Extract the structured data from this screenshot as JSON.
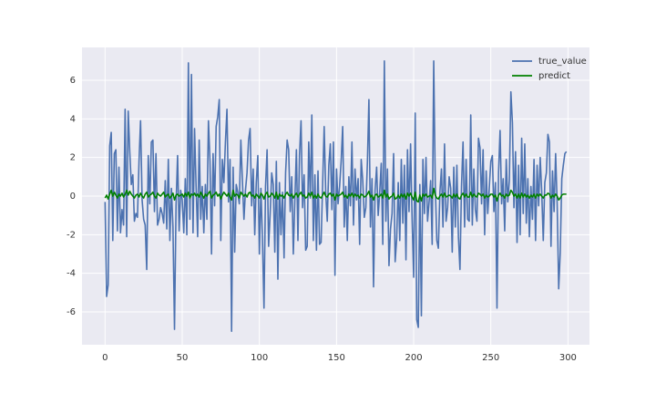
{
  "chart_data": {
    "type": "line",
    "x": [
      0,
      1,
      2,
      3,
      4,
      5,
      6,
      7,
      8,
      9,
      10,
      11,
      12,
      13,
      14,
      15,
      16,
      17,
      18,
      19,
      20,
      21,
      22,
      23,
      24,
      25,
      26,
      27,
      28,
      29,
      30,
      31,
      32,
      33,
      34,
      35,
      36,
      37,
      38,
      39,
      40,
      41,
      42,
      43,
      44,
      45,
      46,
      47,
      48,
      49,
      50,
      51,
      52,
      53,
      54,
      55,
      56,
      57,
      58,
      59,
      60,
      61,
      62,
      63,
      64,
      65,
      66,
      67,
      68,
      69,
      70,
      71,
      72,
      73,
      74,
      75,
      76,
      77,
      78,
      79,
      80,
      81,
      82,
      83,
      84,
      85,
      86,
      87,
      88,
      89,
      90,
      91,
      92,
      93,
      94,
      95,
      96,
      97,
      98,
      99,
      100,
      101,
      102,
      103,
      104,
      105,
      106,
      107,
      108,
      109,
      110,
      111,
      112,
      113,
      114,
      115,
      116,
      117,
      118,
      119,
      120,
      121,
      122,
      123,
      124,
      125,
      126,
      127,
      128,
      129,
      130,
      131,
      132,
      133,
      134,
      135,
      136,
      137,
      138,
      139,
      140,
      141,
      142,
      143,
      144,
      145,
      146,
      147,
      148,
      149,
      150,
      151,
      152,
      153,
      154,
      155,
      156,
      157,
      158,
      159,
      160,
      161,
      162,
      163,
      164,
      165,
      166,
      167,
      168,
      169,
      170,
      171,
      172,
      173,
      174,
      175,
      176,
      177,
      178,
      179,
      180,
      181,
      182,
      183,
      184,
      185,
      186,
      187,
      188,
      189,
      190,
      191,
      192,
      193,
      194,
      195,
      196,
      197,
      198,
      199,
      200,
      201,
      202,
      203,
      204,
      205,
      206,
      207,
      208,
      209,
      210,
      211,
      212,
      213,
      214,
      215,
      216,
      217,
      218,
      219,
      220,
      221,
      222,
      223,
      224,
      225,
      226,
      227,
      228,
      229,
      230,
      231,
      232,
      233,
      234,
      235,
      236,
      237,
      238,
      239,
      240,
      241,
      242,
      243,
      244,
      245,
      246,
      247,
      248,
      249,
      250,
      251,
      252,
      253,
      254,
      255,
      256,
      257,
      258,
      259,
      260,
      261,
      262,
      263,
      264,
      265,
      266,
      267,
      268,
      269,
      270,
      271,
      272,
      273,
      274,
      275,
      276,
      277,
      278,
      279,
      280,
      281,
      282,
      283,
      284,
      285,
      286,
      287,
      288,
      289,
      290,
      291,
      292,
      293,
      294,
      295,
      296,
      297,
      298,
      299
    ],
    "series": [
      {
        "name": "true_value",
        "color": "#4c72b0",
        "values": [
          -0.3,
          -5.2,
          -4.6,
          2.6,
          3.3,
          -2.3,
          2.2,
          2.4,
          -1.8,
          1.5,
          -1.9,
          -0.7,
          -1.5,
          4.5,
          -2.1,
          4.4,
          2.3,
          0.6,
          1.1,
          -1.3,
          -0.9,
          -1.1,
          1.8,
          3.9,
          -0.2,
          -1.2,
          -1.5,
          -3.8,
          2.1,
          -0.4,
          2.8,
          2.9,
          -0.8,
          2.2,
          -1.5,
          -1.2,
          -0.6,
          -0.9,
          -1.4,
          0.8,
          -1.7,
          1.9,
          -2.3,
          0.4,
          -1.6,
          -6.9,
          -0.5,
          2.1,
          -1.8,
          0.3,
          -0.2,
          -1.9,
          0.9,
          -2.0,
          6.9,
          -1.2,
          6.3,
          -1.9,
          3.5,
          0.5,
          -2.1,
          2.9,
          -1.2,
          0.5,
          -1.9,
          0.6,
          -1.2,
          3.9,
          1.8,
          -3.0,
          2.2,
          -0.5,
          3.6,
          4.1,
          5.0,
          -2.3,
          1.9,
          0.7,
          2.8,
          4.5,
          -0.3,
          1.9,
          -7.0,
          1.5,
          -2.9,
          0.6,
          0.2,
          -0.4,
          2.9,
          0.8,
          -1.2,
          0.3,
          1.2,
          2.9,
          3.5,
          -0.5,
          1.4,
          -2.0,
          0.7,
          2.1,
          -3.0,
          0.4,
          -2.2,
          -5.8,
          0.5,
          2.4,
          -2.6,
          -0.9,
          1.2,
          0.6,
          -2.9,
          1.8,
          -4.3,
          0.7,
          -2.0,
          0.2,
          -3.2,
          1.2,
          2.9,
          2.4,
          -0.8,
          1.0,
          -3.0,
          -0.2,
          2.4,
          -2.3,
          2.1,
          3.9,
          -0.6,
          1.1,
          -2.8,
          -2.6,
          2.8,
          -0.1,
          4.2,
          -2.3,
          1.1,
          -2.8,
          1.3,
          -2.5,
          -2.4,
          0.6,
          3.6,
          0.2,
          -1.3,
          1.6,
          2.7,
          -0.7,
          2.8,
          -4.1,
          1.4,
          -0.4,
          0.5,
          1.8,
          3.6,
          -1.6,
          0.5,
          -2.3,
          1.0,
          -0.5,
          2.8,
          -1.5,
          1.4,
          -0.2,
          0.9,
          -2.5,
          1.9,
          0.8,
          -1.1,
          -0.6,
          1.7,
          5.0,
          -1.6,
          0.9,
          -4.7,
          0.3,
          1.5,
          -1.0,
          0.2,
          1.7,
          -2.5,
          7.0,
          -1.3,
          1.4,
          -3.6,
          -1.7,
          -0.9,
          2.2,
          -3.4,
          -2.2,
          0.7,
          -2.3,
          1.9,
          -1.4,
          1.6,
          -3.3,
          2.4,
          -0.8,
          2.7,
          -1.2,
          -4.2,
          4.3,
          -6.4,
          -6.8,
          0.6,
          -6.2,
          1.9,
          -0.9,
          2.0,
          -1.3,
          -0.3,
          0.8,
          -2.5,
          7.0,
          0.6,
          -2.3,
          -2.7,
          0.2,
          1.4,
          -1.6,
          2.7,
          -1.3,
          -0.6,
          1.0,
          0.4,
          -2.9,
          1.5,
          -1.6,
          1.6,
          -2.1,
          -3.8,
          0.5,
          2.8,
          -1.6,
          1.9,
          -1.2,
          -1.3,
          4.2,
          -1.5,
          1.4,
          -0.7,
          -1.3,
          3.0,
          2.5,
          -0.4,
          2.4,
          -2.0,
          1.3,
          -0.9,
          0.4,
          1.8,
          2.1,
          -0.8,
          0.7,
          -5.8,
          1.2,
          3.4,
          -0.4,
          0.9,
          -1.8,
          1.9,
          -0.3,
          0.8,
          5.4,
          3.8,
          -0.6,
          2.3,
          -2.4,
          1.6,
          -2.0,
          3.0,
          -0.9,
          2.7,
          -1.4,
          0.9,
          -2.1,
          0.5,
          -1.2,
          1.9,
          -2.3,
          1.6,
          -0.5,
          2.0,
          0.2,
          -2.3,
          0.7,
          1.2,
          3.2,
          2.8,
          -2.6,
          1.3,
          -0.8,
          2.2,
          -0.4,
          -4.8,
          -2.9,
          0.9,
          1.6,
          2.2,
          2.3
        ]
      },
      {
        "name": "predict",
        "color": "#008000",
        "values": [
          -0.1,
          0.05,
          -0.15,
          0.1,
          0.3,
          0.0,
          0.2,
          0.05,
          -0.1,
          0.1,
          0.0,
          0.15,
          -0.05,
          0.1,
          0.3,
          0.05,
          0.25,
          0.1,
          0.0,
          -0.1,
          0.05,
          0.1,
          -0.05,
          0.15,
          0.0,
          -0.1,
          0.1,
          0.2,
          -0.05,
          0.05,
          0.1,
          0.2,
          0.0,
          -0.1,
          0.15,
          0.05,
          0.0,
          0.1,
          0.2,
          -0.05,
          0.05,
          0.1,
          -0.1,
          0.0,
          0.15,
          -0.2,
          0.05,
          0.1,
          0.0,
          0.05,
          0.1,
          -0.05,
          0.15,
          0.0,
          0.2,
          -0.1,
          0.1,
          0.05,
          0.15,
          0.0,
          0.1,
          -0.05,
          0.2,
          0.05,
          -0.1,
          0.1,
          0.0,
          0.15,
          0.25,
          -0.1,
          0.05,
          0.1,
          0.2,
          0.0,
          0.1,
          -0.15,
          0.05,
          0.2,
          0.1,
          0.0,
          0.15,
          -0.05,
          -0.2,
          0.3,
          0.0,
          0.1,
          0.05,
          -0.1,
          0.2,
          0.1,
          0.0,
          0.1,
          -0.05,
          0.15,
          0.2,
          0.0,
          0.05,
          -0.1,
          0.1,
          0.0,
          -0.1,
          0.15,
          0.05,
          -0.15,
          0.1,
          0.2,
          -0.05,
          0.0,
          0.15,
          0.05,
          -0.1,
          0.2,
          -0.15,
          0.1,
          0.0,
          0.05,
          -0.1,
          0.1,
          0.2,
          0.05,
          0.0,
          0.1,
          -0.1,
          0.05,
          0.15,
          -0.05,
          0.1,
          0.2,
          0.0,
          0.05,
          -0.1,
          -0.05,
          0.15,
          0.0,
          0.2,
          -0.1,
          0.05,
          -0.1,
          0.1,
          -0.05,
          -0.1,
          0.05,
          0.2,
          0.0,
          -0.05,
          0.1,
          0.15,
          0.0,
          0.1,
          -0.2,
          0.1,
          0.0,
          0.05,
          0.1,
          0.2,
          -0.05,
          0.05,
          -0.1,
          0.1,
          0.0,
          0.15,
          -0.05,
          0.1,
          0.0,
          0.05,
          -0.1,
          0.1,
          0.05,
          -0.05,
          0.0,
          0.1,
          0.25,
          -0.05,
          0.05,
          -0.2,
          0.05,
          0.1,
          -0.05,
          0.0,
          0.1,
          -0.1,
          0.3,
          -0.05,
          0.1,
          -0.15,
          -0.05,
          0.0,
          0.15,
          -0.15,
          -0.1,
          0.05,
          -0.1,
          0.1,
          -0.05,
          0.1,
          -0.15,
          0.15,
          0.0,
          0.15,
          -0.05,
          -0.2,
          0.2,
          -0.25,
          -0.3,
          0.05,
          -0.25,
          0.1,
          0.0,
          0.1,
          -0.05,
          0.0,
          0.05,
          -0.1,
          0.4,
          0.05,
          -0.1,
          -0.15,
          0.0,
          0.1,
          -0.05,
          0.15,
          -0.05,
          0.0,
          0.05,
          0.0,
          -0.1,
          0.1,
          -0.05,
          0.1,
          -0.1,
          -0.15,
          0.05,
          0.15,
          -0.05,
          0.1,
          -0.05,
          -0.05,
          0.2,
          -0.05,
          0.1,
          0.0,
          -0.05,
          0.15,
          0.1,
          0.0,
          0.1,
          -0.1,
          0.05,
          -0.05,
          0.0,
          0.1,
          0.1,
          -0.05,
          0.05,
          -0.25,
          0.05,
          0.15,
          0.0,
          0.05,
          -0.1,
          0.1,
          0.0,
          0.05,
          0.3,
          0.2,
          0.0,
          0.1,
          -0.1,
          0.1,
          -0.1,
          0.15,
          -0.05,
          0.1,
          -0.05,
          0.05,
          -0.1,
          0.05,
          -0.05,
          0.1,
          -0.1,
          0.1,
          0.0,
          0.1,
          0.0,
          -0.1,
          0.05,
          0.05,
          0.15,
          0.1,
          -0.1,
          0.05,
          -0.05,
          0.1,
          0.0,
          -0.2,
          -0.1,
          0.05,
          0.1,
          0.1,
          0.1
        ]
      }
    ],
    "xlim": [
      -14.95,
      313.95
    ],
    "xticks": [
      0,
      50,
      100,
      150,
      200,
      250,
      300
    ],
    "ylim": [
      -7.7,
      7.7
    ],
    "yticks": [
      -6,
      -4,
      -2,
      0,
      2,
      4,
      6
    ],
    "grid": true,
    "legend": "upper right"
  }
}
